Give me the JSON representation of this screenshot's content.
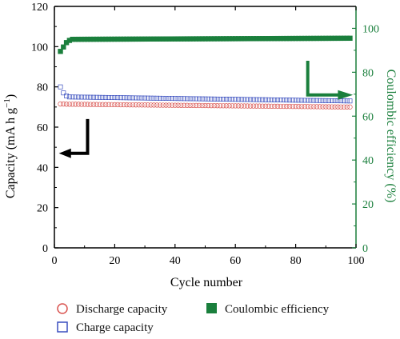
{
  "colors": {
    "discharge": "#d9534f",
    "charge": "#3a4fbf",
    "ce": "#1a7f3c",
    "ce_axis": "#1a7f3c",
    "axis": "#000000"
  },
  "chart_data": {
    "type": "scatter",
    "xlabel": "Cycle number",
    "ylabel_left": "Capacity (mA h g",
    "ylabel_left_sup": "−1",
    "ylabel_left_close": ")",
    "ylabel_right": "Coulombic efficiency (%)",
    "xlim": [
      0,
      100
    ],
    "ylim_left": [
      0,
      120
    ],
    "ylim_right": [
      0,
      110
    ],
    "x_ticks": [
      "0",
      "20",
      "40",
      "60",
      "80",
      "100"
    ],
    "y_left_ticks": [
      "0",
      "20",
      "40",
      "60",
      "80",
      "100",
      "120"
    ],
    "y_right_ticks": [
      "0",
      "20",
      "40",
      "60",
      "80",
      "100"
    ],
    "cycles": [
      2,
      100
    ],
    "series": [
      {
        "name": "Discharge capacity",
        "axis": "left",
        "marker": "circle",
        "x_start": 2,
        "x_end": 98,
        "values_start": [
          71.5,
          71.5,
          71.4
        ],
        "value_end": 70.0
      },
      {
        "name": "Charge capacity",
        "axis": "left",
        "marker": "square",
        "x_start": 2,
        "x_end": 98,
        "values_start": [
          80.0,
          77.0,
          75.5,
          75.0
        ],
        "value_end": 73.0
      },
      {
        "name": "Coulombic efficiency",
        "axis": "right",
        "marker": "filled-square",
        "x_start": 2,
        "x_end": 98,
        "values_start": [
          89.5,
          91.5,
          93.5,
          94.5,
          95.0
        ],
        "value_end": 95.5
      }
    ]
  }
}
